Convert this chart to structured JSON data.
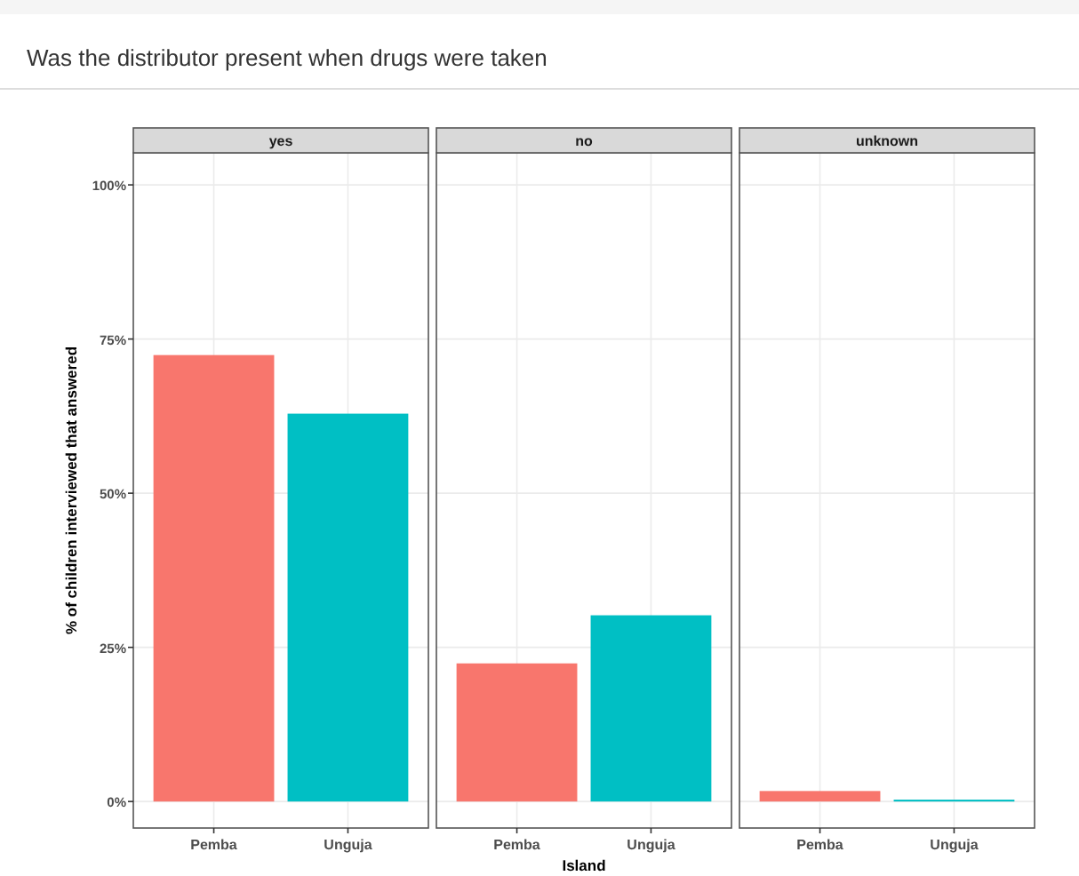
{
  "chart_data": [
    {
      "type": "bar",
      "title": "yes",
      "annotations": [
        "Was the distributor present when drugs were taken"
      ],
      "ylabel": "% of children interviewed that answered",
      "categories": [
        "Pemba",
        "Unguja"
      ],
      "values": [
        72.4,
        62.9
      ],
      "colors": [
        "#f8766d",
        "#00bfc4"
      ],
      "ylim": [
        -4.3,
        105.2
      ],
      "yticks": [
        {
          "value": 0,
          "label": "0%"
        },
        {
          "value": 25,
          "label": "25%"
        },
        {
          "value": 50,
          "label": "50%"
        },
        {
          "value": 75,
          "label": "75%"
        },
        {
          "value": 100,
          "label": "100%"
        }
      ],
      "grid": true
    },
    {
      "type": "bar",
      "title": "no",
      "xlabel": "Island",
      "categories": [
        "Pemba",
        "Unguja"
      ],
      "values": [
        22.4,
        30.2
      ],
      "colors": [
        "#f8766d",
        "#00bfc4"
      ],
      "ylim": [
        -4.3,
        105.2
      ],
      "yticks": [
        0,
        25,
        50,
        75,
        100
      ],
      "grid": true,
      "tick_labels": "x"
    },
    {
      "type": "bar",
      "title": "unknown",
      "categories": [
        "Pemba",
        "Unguja"
      ],
      "values": [
        1.7,
        0.3
      ],
      "colors": [
        "#f8766d",
        "#00bfc4"
      ],
      "ylim": [
        -4.3,
        105.2
      ],
      "yticks": [
        0,
        25,
        50,
        75,
        100
      ],
      "grid": true,
      "tick_labels": "x"
    }
  ]
}
